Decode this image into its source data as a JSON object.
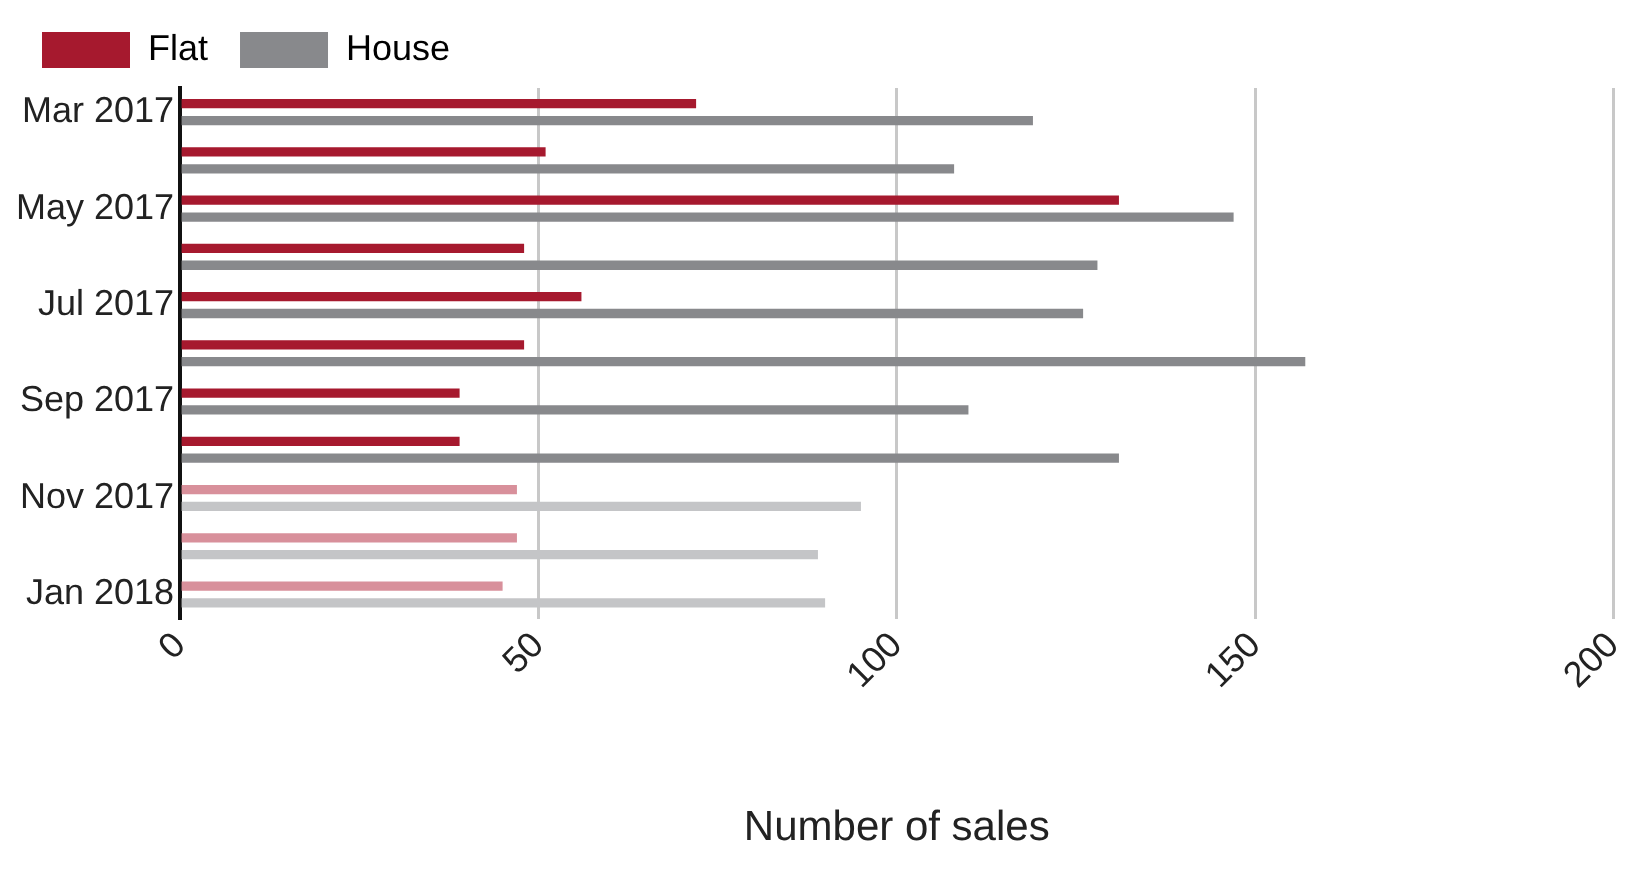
{
  "chart_data": {
    "type": "bar",
    "orientation": "horizontal",
    "xlabel": "Number of sales",
    "categories": [
      "Mar 2017",
      null,
      "May 2017",
      null,
      "Jul 2017",
      null,
      "Sep 2017",
      null,
      "Nov 2017",
      null,
      "Jan 2018"
    ],
    "series": [
      {
        "name": "Flat",
        "color": "#a6192e",
        "colors": [
          "#a6192e",
          "#a6192e",
          "#a6192e",
          "#a6192e",
          "#a6192e",
          "#a6192e",
          "#a6192e",
          "#a6192e",
          "#d8909b",
          "#d8909b",
          "#d8909b"
        ],
        "values": [
          72,
          51,
          131,
          48,
          56,
          48,
          39,
          39,
          47,
          47,
          45
        ]
      },
      {
        "name": "House",
        "color": "#88898c",
        "colors": [
          "#88898c",
          "#88898c",
          "#88898c",
          "#88898c",
          "#88898c",
          "#88898c",
          "#88898c",
          "#88898c",
          "#c4c5c7",
          "#c4c5c7",
          "#c4c5c7"
        ],
        "values": [
          119,
          108,
          147,
          128,
          126,
          157,
          110,
          131,
          95,
          89,
          90
        ]
      }
    ],
    "xlim": [
      0,
      200
    ],
    "xticks": [
      0,
      50,
      100,
      150,
      200
    ],
    "grid": "x",
    "legend": "top left"
  }
}
